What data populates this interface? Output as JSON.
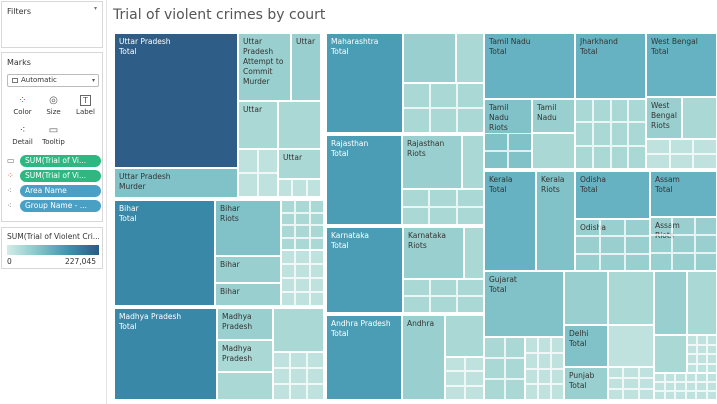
{
  "sheet": {
    "title": "Trial of violent crimes by court"
  },
  "sidebar": {
    "filters_title": "Filters",
    "marks_title": "Marks",
    "mark_type": "Automatic",
    "buttons": [
      {
        "label": "Color",
        "icon": "color-dots-icon"
      },
      {
        "label": "Size",
        "icon": "size-shape-icon"
      },
      {
        "label": "Label",
        "icon": "label-t-icon"
      },
      {
        "label": "Detail",
        "icon": "detail-dots-icon"
      },
      {
        "label": "Tooltip",
        "icon": "tooltip-bubble-icon"
      }
    ],
    "pills": [
      {
        "label": "SUM(Trial of Vi...",
        "icon": "tooltip-mini-icon",
        "color": "#2fb782"
      },
      {
        "label": "SUM(Trial of Vi...",
        "icon": "color-mini-icon",
        "color": "#2fb782"
      },
      {
        "label": "Area Name",
        "icon": "detail-mini-icon",
        "color": "#4a9fc4"
      },
      {
        "label": "Group Name - ...",
        "icon": "detail-mini-icon",
        "color": "#4a9fc4"
      }
    ]
  },
  "legend": {
    "title": "SUM(Trial of Violent Cri...",
    "min": "0",
    "max": "227,045",
    "colors": [
      "#d2ece8",
      "#84c6c8",
      "#3d93ae",
      "#2b5b86"
    ]
  },
  "treemap_labels": {
    "up_total": "Uttar Pradesh\nTotal",
    "up_attempt": "Uttar\nPradesh\nAttempt to\nCommit\nMurder",
    "up_uttar1": "Uttar",
    "up_uttar2": "Uttar",
    "up_uttar3": "Uttar",
    "up_murder": "Uttar Pradesh\nMurder",
    "mh_total": "Maharashtra\nTotal",
    "rj_total": "Rajasthan\nTotal",
    "rj_riots": "Rajasthan\nRiots",
    "ka_total": "Karnataka\nTotal",
    "ka_riots": "Karnataka\nRiots",
    "ap_total": "Andhra Pradesh\nTotal",
    "ap_andhra": "Andhra",
    "bi_total": "Bihar\nTotal",
    "bi_riots": "Bihar\nRiots",
    "bi_b1": "Bihar",
    "bi_b2": "Bihar",
    "mp_total": "Madhya Pradesh\nTotal",
    "mp_m1": "Madhya\nPradesh",
    "mp_m2": "Madhya\nPradesh",
    "tn_total": "Tamil Nadu\nTotal",
    "tn_riots": "Tamil\nNadu\nRiots",
    "tn_tamil": "Tamil\nNadu",
    "jh_total": "Jharkhand\nTotal",
    "wb_total": "West Bengal\nTotal",
    "wb_riots": "West\nBengal\nRiots",
    "kl_total": "Kerala\nTotal",
    "kl_riots": "Kerala\nRiots",
    "od_total": "Odisha\nTotal",
    "od_odisha": "Odisha",
    "as_total": "Assam\nTotal",
    "as_riots": "Assam\nRiots",
    "gj_total": "Gujarat\nTotal",
    "dl_total": "Delhi\nTotal",
    "pb_total": "Punjab\nTotal"
  }
}
